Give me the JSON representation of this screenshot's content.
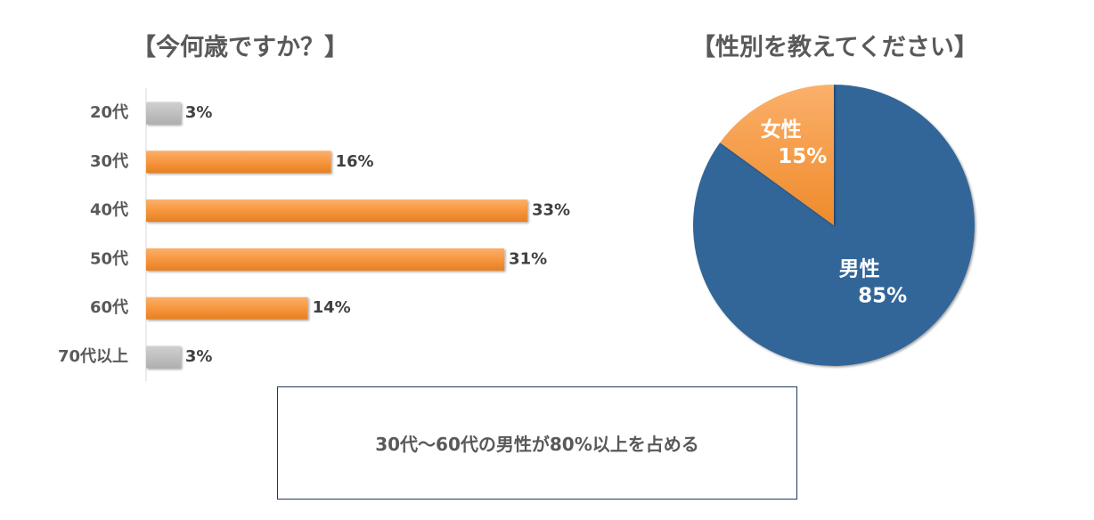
{
  "chart_data": [
    {
      "type": "bar",
      "orientation": "horizontal",
      "title": "【今何歳ですか？】",
      "categories": [
        "20代",
        "30代",
        "40代",
        "50代",
        "60代",
        "70代以上"
      ],
      "values": [
        3,
        16,
        33,
        31,
        14,
        3
      ],
      "value_labels": [
        "3%",
        "16%",
        "33%",
        "31%",
        "14%",
        "3%"
      ],
      "unit": "%",
      "colors": [
        "#bfbfbf",
        "#f7963f",
        "#f7963f",
        "#f7963f",
        "#f7963f",
        "#bfbfbf"
      ],
      "grid": false
    },
    {
      "type": "pie",
      "title": "【性別を教えてください】",
      "slices": [
        {
          "name": "男性",
          "value": 85,
          "label": "85%",
          "color": "#336699"
        },
        {
          "name": "女性",
          "value": 15,
          "label": "15%",
          "color": "#f7963f"
        }
      ]
    }
  ],
  "summary": {
    "text": "30代〜60代の男性が80%以上を占める"
  }
}
